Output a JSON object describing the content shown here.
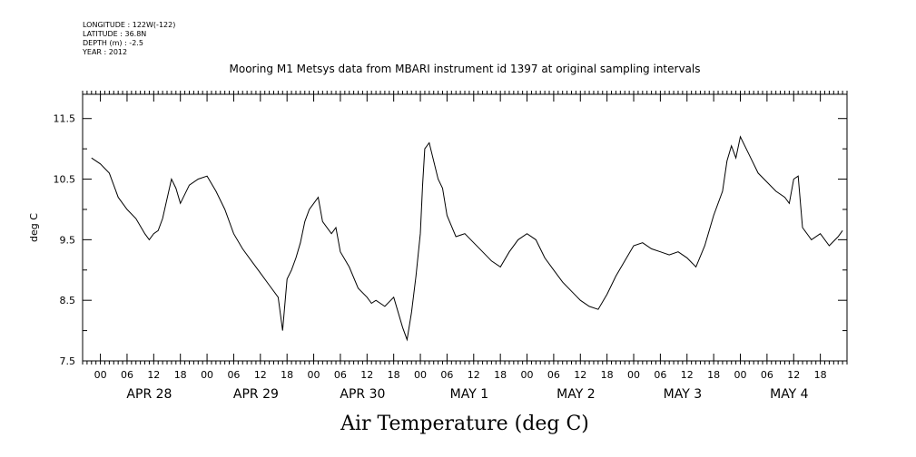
{
  "header": {
    "longitude": "LONGITUDE : 122W(-122)",
    "latitude": "LATITUDE : 36.8N",
    "depth": "DEPTH (m) : -2.5",
    "year": "YEAR : 2012"
  },
  "chart_data": {
    "type": "line",
    "title": "Mooring M1 Metsys data from MBARI instrument id 1397 at original sampling intervals",
    "xlabel": "Air Temperature (deg C)",
    "ylabel": "deg C",
    "ylim": [
      7.5,
      11.9
    ],
    "yticks": [
      7.5,
      8.5,
      9.5,
      10.5,
      11.5
    ],
    "xlim_hours": [
      -4,
      168
    ],
    "hour_ticks": [
      "00",
      "06",
      "12",
      "18"
    ],
    "day_labels": [
      "APR 28",
      "APR 29",
      "APR 30",
      "MAY  1",
      "MAY  2",
      "MAY  3",
      "MAY  4"
    ],
    "grid": false,
    "series": [
      {
        "x_hours": [
          -2,
          0,
          2,
          4,
          6,
          8,
          10,
          11,
          12,
          13,
          14,
          16,
          17,
          18,
          20,
          22,
          24,
          26,
          28,
          30,
          32,
          34,
          36,
          38,
          40,
          41,
          42,
          43,
          44,
          45,
          46,
          47,
          48,
          49,
          50,
          52,
          53,
          54,
          56,
          58,
          60,
          61,
          62,
          64,
          66,
          68,
          69,
          70,
          71,
          72,
          72.5,
          73,
          74,
          76,
          77,
          78,
          80,
          82,
          84,
          86,
          88,
          90,
          92,
          94,
          96,
          98,
          100,
          102,
          104,
          106,
          108,
          110,
          112,
          114,
          116,
          118,
          120,
          122,
          124,
          126,
          128,
          130,
          132,
          134,
          136,
          138,
          140,
          141,
          142,
          143,
          144,
          146,
          148,
          150,
          152,
          154,
          155,
          156,
          157,
          158,
          160,
          162,
          164,
          166,
          167
        ],
        "y": [
          10.85,
          10.75,
          10.6,
          10.2,
          10.0,
          9.85,
          9.6,
          9.5,
          9.6,
          9.65,
          9.85,
          10.5,
          10.35,
          10.1,
          10.4,
          10.5,
          10.55,
          10.3,
          10.0,
          9.6,
          9.35,
          9.15,
          8.95,
          8.75,
          8.55,
          8.0,
          8.85,
          9.0,
          9.2,
          9.45,
          9.8,
          10.0,
          10.1,
          10.2,
          9.8,
          9.6,
          9.7,
          9.3,
          9.05,
          8.7,
          8.55,
          8.45,
          8.5,
          8.4,
          8.55,
          8.05,
          7.85,
          8.3,
          8.9,
          9.6,
          10.4,
          11.0,
          11.1,
          10.5,
          10.35,
          9.9,
          9.55,
          9.6,
          9.45,
          9.3,
          9.15,
          9.05,
          9.3,
          9.5,
          9.6,
          9.5,
          9.2,
          9.0,
          8.8,
          8.65,
          8.5,
          8.4,
          8.35,
          8.6,
          8.9,
          9.15,
          9.4,
          9.45,
          9.35,
          9.3,
          9.25,
          9.3,
          9.2,
          9.05,
          9.4,
          9.9,
          10.3,
          10.8,
          11.05,
          10.85,
          11.2,
          10.9,
          10.6,
          10.45,
          10.3,
          10.2,
          10.1,
          10.5,
          10.55,
          9.7,
          9.5,
          9.6,
          9.4,
          9.55,
          9.65
        ]
      }
    ]
  }
}
